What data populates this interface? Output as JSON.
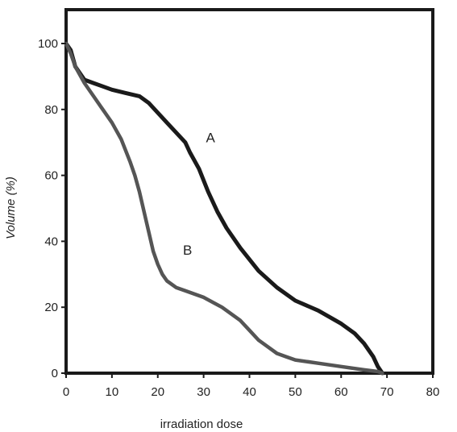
{
  "chart_data": {
    "type": "line",
    "title": "",
    "xlabel": "irradiation dose",
    "ylabel": "Volume (%)",
    "xlim": [
      0,
      80
    ],
    "ylim": [
      0,
      110
    ],
    "xticks": [
      0,
      10,
      20,
      30,
      40,
      50,
      60,
      70,
      80
    ],
    "yticks": [
      0,
      20,
      40,
      60,
      80,
      100
    ],
    "grid": false,
    "legend": "none",
    "series": [
      {
        "name": "A",
        "color": "#1a1a1a",
        "x": [
          0,
          1,
          2,
          4,
          6,
          8,
          10,
          13,
          16,
          18,
          20,
          22,
          24,
          26,
          27,
          29,
          31,
          33,
          35,
          38,
          42,
          46,
          50,
          55,
          60,
          63,
          65,
          67,
          68,
          69
        ],
        "y": [
          100,
          98,
          93,
          89,
          88,
          87,
          86,
          85,
          84,
          82,
          79,
          76,
          73,
          70,
          67,
          62,
          55,
          49,
          44,
          38,
          31,
          26,
          22,
          19,
          15,
          12,
          9,
          5,
          2,
          0
        ],
        "label_position": {
          "x": 30.5,
          "y": 70
        }
      },
      {
        "name": "B",
        "color": "#555555",
        "x": [
          0,
          1,
          2,
          4,
          6,
          8,
          10,
          12,
          14,
          15,
          16,
          17,
          18,
          19,
          20,
          21,
          22,
          24,
          26,
          30,
          34,
          38,
          40,
          42,
          44,
          46,
          48,
          50,
          55,
          60,
          65,
          68,
          69
        ],
        "y": [
          100,
          97,
          93,
          88,
          84,
          80,
          76,
          71,
          64,
          60,
          55,
          49,
          43,
          37,
          33,
          30,
          28,
          26,
          25,
          23,
          20,
          16,
          13,
          10,
          8,
          6,
          5,
          4,
          3,
          2,
          1,
          0.5,
          0
        ],
        "label_position": {
          "x": 25.5,
          "y": 36
        }
      }
    ]
  }
}
